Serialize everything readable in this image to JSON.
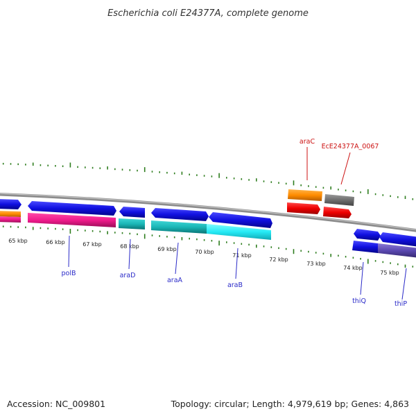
{
  "title": "Escherichia coli E24377A, complete genome",
  "footer": {
    "accession": "Accession: NC_009801",
    "stats": "Topology: circular; Length: 4,979,619 bp; Genes: 4,863"
  },
  "colors": {
    "backbone": "#8c8c8c",
    "tick": "#2e7d1e",
    "label_blue": "#2a2ac8",
    "label_red": "#cc1111"
  },
  "scale_ticks": [
    "65 kbp",
    "66 kbp",
    "67 kbp",
    "68 kbp",
    "69 kbp",
    "70 kbp",
    "71 kbp",
    "72 kbp",
    "73 kbp",
    "74 kbp",
    "75 kbp"
  ],
  "genes": [
    {
      "label": "araC",
      "color": "red"
    },
    {
      "label": "EcE24377A_0067",
      "color": "red"
    },
    {
      "label": "polB",
      "color": "blue"
    },
    {
      "label": "araD",
      "color": "blue"
    },
    {
      "label": "araA",
      "color": "blue"
    },
    {
      "label": "araB",
      "color": "blue"
    },
    {
      "label": "thiQ",
      "color": "blue"
    },
    {
      "label": "thiP",
      "color": "blue"
    }
  ]
}
